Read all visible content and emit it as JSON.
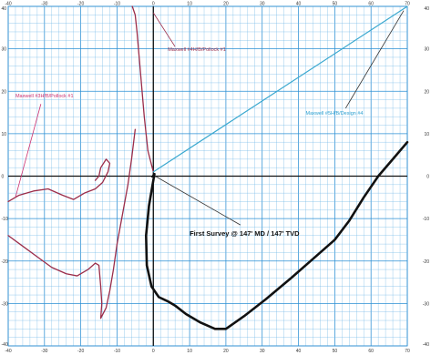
{
  "chart_data": {
    "type": "line",
    "title": "",
    "xlabel": "",
    "ylabel": "",
    "xlim": [
      -40,
      70
    ],
    "ylim": [
      -40,
      40
    ],
    "grid": true,
    "x_ticks": [
      -40,
      -30,
      -20,
      -10,
      0,
      10,
      20,
      30,
      40,
      50,
      60,
      70
    ],
    "y_ticks": [
      40,
      30,
      20,
      10,
      0,
      -10,
      -20,
      -30,
      -40
    ],
    "x_tick_labels": [
      "-40",
      "-30",
      "-20",
      "-10",
      "0",
      "10",
      "20",
      "30",
      "40",
      "50",
      "60",
      "70"
    ],
    "y_tick_labels": [
      "40",
      "30",
      "20",
      "10",
      "0",
      "-10",
      "-20",
      "-30",
      "-40"
    ],
    "series": [
      {
        "name": "",
        "color": "#9b2d4a",
        "width": 1.3,
        "points": [
          [
            0,
            1
          ],
          [
            -1.5,
            6
          ],
          [
            -2.5,
            14
          ],
          [
            -3.5,
            24
          ],
          [
            -4.5,
            34
          ],
          [
            -5,
            38
          ],
          [
            -5.8,
            40
          ]
        ]
      },
      {
        "name": "",
        "color": "#9b2d4a",
        "width": 1.3,
        "points": [
          [
            -40,
            -6
          ],
          [
            -37,
            -4.5
          ],
          [
            -33,
            -3.5
          ],
          [
            -29,
            -3
          ],
          [
            -25,
            -4.5
          ],
          [
            -22,
            -5.5
          ],
          [
            -19,
            -4
          ],
          [
            -16,
            -3
          ],
          [
            -14,
            -1.5
          ],
          [
            -12.5,
            1
          ],
          [
            -12,
            3
          ],
          [
            -13,
            4
          ],
          [
            -14.5,
            2
          ],
          [
            -15,
            0
          ],
          [
            -16,
            -1
          ]
        ]
      },
      {
        "name": "",
        "color": "#9b2d4a",
        "width": 1.3,
        "points": [
          [
            -40,
            -14
          ],
          [
            -36,
            -16.5
          ],
          [
            -32,
            -19
          ],
          [
            -28,
            -21.5
          ],
          [
            -24,
            -23
          ],
          [
            -21,
            -23.5
          ],
          [
            -18,
            -22
          ],
          [
            -16,
            -20.5
          ],
          [
            -15,
            -21
          ],
          [
            -14.5,
            -26
          ],
          [
            -14.2,
            -30
          ],
          [
            -14.5,
            -33.5
          ],
          [
            -13,
            -31
          ],
          [
            -12,
            -27
          ],
          [
            -11,
            -22
          ],
          [
            -10,
            -16
          ],
          [
            -8.5,
            -9
          ],
          [
            -7,
            -2
          ],
          [
            -6,
            4
          ],
          [
            -5,
            11
          ]
        ]
      },
      {
        "name": "",
        "color": "#3aa8cf",
        "width": 1.2,
        "points": [
          [
            0,
            1
          ],
          [
            70,
            40
          ]
        ]
      },
      {
        "name": "",
        "color": "#111111",
        "width": 2.6,
        "points": [
          [
            0.3,
            0.5
          ],
          [
            -1.2,
            -7
          ],
          [
            -2,
            -14
          ],
          [
            -1.8,
            -21
          ],
          [
            -0.5,
            -26
          ],
          [
            1.5,
            -28.5
          ],
          [
            4,
            -29.5
          ],
          [
            6,
            -30.5
          ],
          [
            9,
            -32.5
          ],
          [
            13,
            -34.5
          ],
          [
            17,
            -36
          ],
          [
            20,
            -36
          ],
          [
            25,
            -33
          ],
          [
            31,
            -29
          ],
          [
            38,
            -24
          ],
          [
            44,
            -19.5
          ],
          [
            50,
            -15
          ],
          [
            54,
            -10.5
          ],
          [
            58,
            -5
          ],
          [
            62,
            0
          ],
          [
            66,
            4
          ],
          [
            70,
            8
          ]
        ]
      }
    ],
    "annotations": [
      {
        "text": "Maxwell #4H/B/Pollock #1",
        "x": 4,
        "y": 29.5,
        "color": "#9b2d4a",
        "size": 5.5,
        "weight": "normal",
        "anchor": "start"
      },
      {
        "text": "Maxwell #3H/B/Pollock #1",
        "x": -38,
        "y": 18.5,
        "color": "#cc3070",
        "size": 5.5,
        "weight": "normal",
        "anchor": "start"
      },
      {
        "text": "Maxwell #5H/B/Design #4",
        "x": 42,
        "y": 14.5,
        "color": "#2a9fd0",
        "size": 5.5,
        "weight": "normal",
        "anchor": "start"
      },
      {
        "text": "First Survey @ 147' MD / 147' TVD",
        "x": 10,
        "y": -14,
        "color": "#111111",
        "size": 7.5,
        "weight": "bold",
        "anchor": "start"
      }
    ],
    "pointers": [
      {
        "x1": 0,
        "y1": 38.5,
        "x2": 6,
        "y2": 30.5,
        "color": "#9b2d4a"
      },
      {
        "x1": -38,
        "y1": -5,
        "x2": -31,
        "y2": 17,
        "color": "#cc3070"
      },
      {
        "x1": 69,
        "y1": 39,
        "x2": 53,
        "y2": 16,
        "color": "#333333"
      },
      {
        "x1": 0.5,
        "y1": 0,
        "x2": 24,
        "y2": -11.5,
        "color": "#333333"
      }
    ]
  }
}
